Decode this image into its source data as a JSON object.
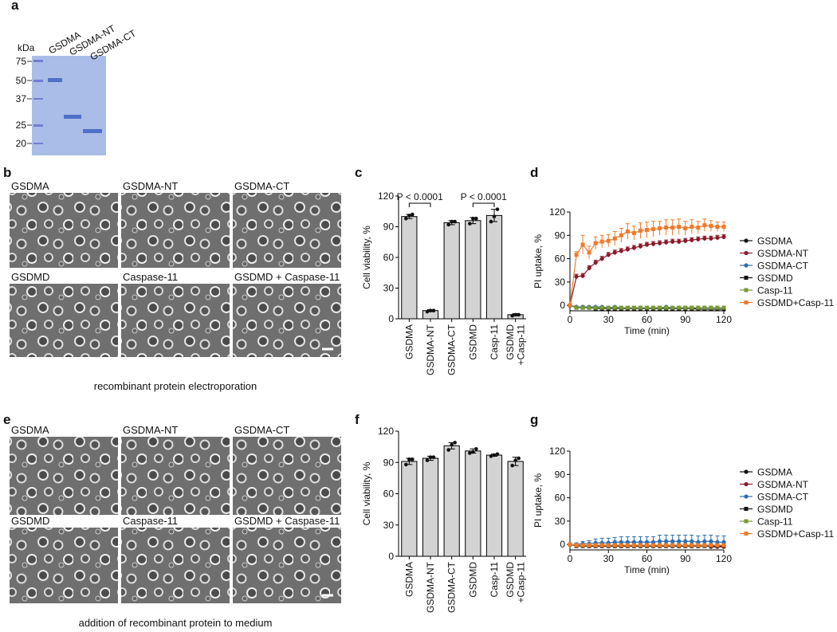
{
  "panel_labels": [
    "a",
    "b",
    "c",
    "d",
    "e",
    "f",
    "g"
  ],
  "gel": {
    "unit": "kDa",
    "markers": [
      75,
      50,
      37,
      25,
      20
    ],
    "lanes": [
      "GSDMA",
      "GSDMA-NT",
      "GSDMA-CT"
    ]
  },
  "micrographs_b": {
    "labels": [
      "GSDMA",
      "GSDMA-NT",
      "GSDMA-CT",
      "GSDMD",
      "Caspase-11",
      "GSDMD + Caspase-11"
    ],
    "caption": "recombinant protein electroporation"
  },
  "micrographs_e": {
    "labels": [
      "GSDMA",
      "GSDMA-NT",
      "GSDMA-CT",
      "GSDMD",
      "Caspase-11",
      "GSDMD + Caspase-11"
    ],
    "caption": "addition of recombinant protein to medium"
  },
  "chart_data": [
    {
      "type": "bar",
      "ylabel": "Cell viability, %",
      "categories": [
        "GSDMA",
        "GSDMA-NT",
        "GSDMA-CT",
        "GSDMD",
        "Casp-11",
        "GSDMD\n+Casp-11"
      ],
      "values": [
        100,
        8,
        94,
        96,
        101,
        4
      ],
      "errors": [
        2,
        1,
        2,
        3,
        6,
        1
      ],
      "points": [
        [
          98,
          101,
          102
        ],
        [
          7,
          8,
          8
        ],
        [
          92,
          95,
          95
        ],
        [
          93,
          98,
          98
        ],
        [
          95,
          100,
          107
        ],
        [
          3,
          4,
          4
        ]
      ],
      "color": "#d3d3d3",
      "ylim": [
        0,
        120
      ],
      "yticks": [
        0,
        30,
        60,
        90,
        120
      ],
      "annotations": [
        "P < 0.0001",
        "P < 0.0001"
      ]
    },
    {
      "type": "line",
      "xlabel": "Time (min)",
      "ylabel": "PI uptake, %",
      "legend": "right",
      "x": [
        0,
        5,
        10,
        15,
        20,
        25,
        30,
        35,
        40,
        45,
        50,
        55,
        60,
        65,
        70,
        75,
        80,
        85,
        90,
        95,
        100,
        105,
        110,
        115,
        120
      ],
      "xlim": [
        0,
        120
      ],
      "xticks": [
        0,
        30,
        60,
        90,
        120
      ],
      "ylim": [
        -7,
        120
      ],
      "yticks": [
        0,
        30,
        60,
        90,
        120
      ],
      "series": [
        {
          "name": "GSDMA",
          "color": "#111111",
          "marker": "circle",
          "values": [
            0,
            -2,
            -2,
            -3,
            -2,
            -3,
            -3,
            -3,
            -3,
            -3,
            -3,
            -3,
            -3,
            -3,
            -3,
            -3,
            -3,
            -3,
            -3,
            -3,
            -3,
            -3,
            -3,
            -3,
            -3
          ]
        },
        {
          "name": "GSDMA-NT",
          "color": "#8b1a2b",
          "marker": "circle",
          "values": [
            0,
            37,
            38,
            48,
            55,
            60,
            65,
            68,
            70,
            72,
            74,
            76,
            78,
            79,
            80,
            81,
            82,
            82,
            83,
            84,
            85,
            86,
            86,
            87,
            88
          ],
          "errors": [
            0,
            3,
            3,
            3,
            3,
            3,
            3,
            3,
            3,
            3,
            3,
            3,
            3,
            3,
            3,
            3,
            3,
            3,
            3,
            3,
            3,
            3,
            3,
            3,
            3
          ]
        },
        {
          "name": "GSDMA-CT",
          "color": "#2e6db4",
          "marker": "circle",
          "values": [
            0,
            -2,
            -2,
            -2,
            -2,
            -2,
            -3,
            -2,
            -3,
            -3,
            -3,
            -3,
            -3,
            -3,
            -3,
            -2,
            -3,
            -3,
            -3,
            -3,
            -3,
            -3,
            -3,
            -3,
            -3
          ]
        },
        {
          "name": "GSDMD",
          "color": "#111111",
          "marker": "square",
          "values": [
            0,
            -3,
            -3,
            -3,
            -4,
            -4,
            -4,
            -4,
            -4,
            -4,
            -4,
            -4,
            -4,
            -4,
            -4,
            -4,
            -4,
            -4,
            -4,
            -4,
            -5,
            -5,
            -5,
            -5,
            -5
          ]
        },
        {
          "name": "Casp-11",
          "color": "#7a9a3a",
          "marker": "square",
          "values": [
            0,
            -3,
            -3,
            -3,
            -3,
            -3,
            -3,
            -3,
            -3,
            -3,
            -3,
            -3,
            -3,
            -3,
            -3,
            -3,
            -3,
            -3,
            -3,
            -3,
            -3,
            -3,
            -3,
            -3,
            -3
          ]
        },
        {
          "name": "GSDMD+Casp-11",
          "color": "#f07a2c",
          "marker": "square",
          "values": [
            0,
            65,
            78,
            68,
            80,
            82,
            83,
            86,
            90,
            95,
            93,
            96,
            97,
            98,
            99,
            100,
            100,
            101,
            99,
            101,
            100,
            103,
            102,
            101,
            101
          ],
          "errors": [
            0,
            4,
            12,
            8,
            8,
            8,
            8,
            9,
            9,
            10,
            9,
            10,
            10,
            10,
            9,
            10,
            10,
            10,
            9,
            9,
            8,
            8,
            7,
            6,
            6
          ]
        }
      ]
    },
    {
      "type": "bar",
      "ylabel": "Cell viability, %",
      "categories": [
        "GSDMA",
        "GSDMA-NT",
        "GSDMA-CT",
        "GSDMD",
        "Casp-11",
        "GSDMD\n+Casp-11"
      ],
      "values": [
        91,
        94,
        106,
        101,
        97,
        91
      ],
      "errors": [
        3,
        2,
        3,
        2,
        1,
        4
      ],
      "points": [
        [
          88,
          93,
          93
        ],
        [
          92,
          95,
          95
        ],
        [
          102,
          107,
          109
        ],
        [
          99,
          100,
          103
        ],
        [
          96,
          97,
          98
        ],
        [
          87,
          92,
          94
        ]
      ],
      "color": "#d3d3d3",
      "ylim": [
        0,
        120
      ],
      "yticks": [
        0,
        30,
        60,
        90,
        120
      ]
    },
    {
      "type": "line",
      "xlabel": "Time (min)",
      "ylabel": "PI uptake, %",
      "legend": "right",
      "x": [
        0,
        5,
        10,
        15,
        20,
        25,
        30,
        35,
        40,
        45,
        50,
        55,
        60,
        65,
        70,
        75,
        80,
        85,
        90,
        95,
        100,
        105,
        110,
        115,
        120
      ],
      "xlim": [
        0,
        120
      ],
      "xticks": [
        0,
        30,
        60,
        90,
        120
      ],
      "ylim": [
        -7,
        120
      ],
      "yticks": [
        0,
        30,
        60,
        90,
        120
      ],
      "series": [
        {
          "name": "GSDMA",
          "color": "#111111",
          "marker": "circle",
          "values": [
            0,
            -1,
            -1,
            -1,
            -1,
            -1,
            -1,
            -1,
            -1,
            -1,
            -1,
            -1,
            -1,
            -1,
            -1,
            -1,
            -1,
            -1,
            -1,
            -1,
            -1,
            -1,
            -2,
            -2,
            -2
          ]
        },
        {
          "name": "GSDMA-NT",
          "color": "#8b1a2b",
          "marker": "circle",
          "values": [
            0,
            -1,
            -1,
            -2,
            -2,
            -2,
            -2,
            -2,
            -2,
            -2,
            -2,
            -2,
            -2,
            -2,
            -2,
            -2,
            -2,
            -2,
            -2,
            -2,
            -1,
            -1,
            -3,
            -3,
            -3
          ]
        },
        {
          "name": "GSDMA-CT",
          "color": "#2e6db4",
          "marker": "circle",
          "values": [
            0,
            0,
            1,
            1,
            2,
            2,
            2,
            3,
            3,
            3,
            3,
            3,
            3,
            3,
            4,
            4,
            4,
            4,
            4,
            4,
            3,
            4,
            4,
            3,
            3
          ],
          "errors": [
            0,
            2,
            3,
            4,
            5,
            6,
            6,
            6,
            7,
            7,
            7,
            7,
            7,
            7,
            8,
            8,
            8,
            8,
            8,
            8,
            8,
            8,
            8,
            8,
            8
          ]
        },
        {
          "name": "GSDMD",
          "color": "#111111",
          "marker": "square",
          "values": [
            0,
            -2,
            -2,
            -2,
            -2,
            -2,
            -2,
            -2,
            -2,
            -2,
            -2,
            -2,
            -2,
            -2,
            -2,
            -2,
            -2,
            -2,
            -2,
            -2,
            -2,
            -2,
            -2,
            -2,
            -2
          ]
        },
        {
          "name": "Casp-11",
          "color": "#7a9a3a",
          "marker": "square",
          "values": [
            0,
            -1,
            -1,
            -1,
            -1,
            -1,
            -1,
            -1,
            -1,
            -1,
            -1,
            -1,
            -1,
            -1,
            -1,
            -1,
            -1,
            -1,
            -1,
            -1,
            -1,
            -1,
            -1,
            -1,
            -1
          ]
        },
        {
          "name": "GSDMD+Casp-11",
          "color": "#f07a2c",
          "marker": "square",
          "values": [
            0,
            -1,
            -1,
            -1,
            -1,
            -1,
            -1,
            -1,
            -1,
            -1,
            -1,
            -1,
            -1,
            -1,
            -1,
            -1,
            -1,
            -1,
            -1,
            -1,
            -1,
            -1,
            -1,
            -1,
            -1
          ]
        }
      ]
    }
  ]
}
